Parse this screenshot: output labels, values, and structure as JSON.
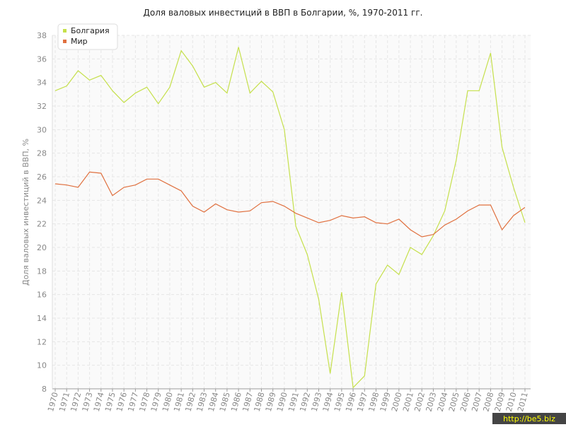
{
  "chart_data": {
    "type": "line",
    "title": "Доля валовых инвестиций в ВВП в Болгарии, %, 1970-2011 гг.",
    "y_label": "Доля валовых инвестиций в ВВП, %",
    "watermark": "http://be5.biz",
    "categories": [
      "1970",
      "1971",
      "1972",
      "1973",
      "1974",
      "1975",
      "1976",
      "1977",
      "1978",
      "1979",
      "1980",
      "1981",
      "1982",
      "1983",
      "1984",
      "1985",
      "1986",
      "1987",
      "1988",
      "1989",
      "1990",
      "1991",
      "1992",
      "1993",
      "1994",
      "1995",
      "1996",
      "1997",
      "1998",
      "1999",
      "2000",
      "2001",
      "2002",
      "2003",
      "2004",
      "2005",
      "2006",
      "2007",
      "2008",
      "2009",
      "2010",
      "2011"
    ],
    "series": [
      {
        "name": "Болгария",
        "color": "#c5e04b",
        "values": [
          33.3,
          33.7,
          35.0,
          34.2,
          34.6,
          33.3,
          32.3,
          33.1,
          33.6,
          32.2,
          33.6,
          36.7,
          35.4,
          33.6,
          34.0,
          33.1,
          37.0,
          33.1,
          34.1,
          33.2,
          30.0,
          21.8,
          19.4,
          15.6,
          9.3,
          16.2,
          8.1,
          9.1,
          16.9,
          18.5,
          17.7,
          20.0,
          19.4,
          21.0,
          23.1,
          27.4,
          33.3,
          33.3,
          36.5,
          28.5,
          25.1,
          22.1
        ]
      },
      {
        "name": "Мир",
        "color": "#e0703f",
        "values": [
          25.4,
          25.3,
          25.1,
          26.4,
          26.3,
          24.4,
          25.1,
          25.3,
          25.8,
          25.8,
          25.3,
          24.8,
          23.5,
          23.0,
          23.7,
          23.2,
          23.0,
          23.1,
          23.8,
          23.9,
          23.5,
          22.9,
          22.5,
          22.1,
          22.3,
          22.7,
          22.5,
          22.6,
          22.1,
          22.0,
          22.4,
          21.5,
          20.9,
          21.1,
          21.9,
          22.4,
          23.1,
          23.6,
          23.6,
          21.5,
          22.7,
          23.4
        ]
      }
    ],
    "ylim": [
      8,
      38
    ],
    "yticks": [
      8,
      10,
      12,
      14,
      16,
      18,
      20,
      22,
      24,
      26,
      28,
      30,
      32,
      34,
      36,
      38
    ],
    "grid": true,
    "legend": "top-left"
  }
}
